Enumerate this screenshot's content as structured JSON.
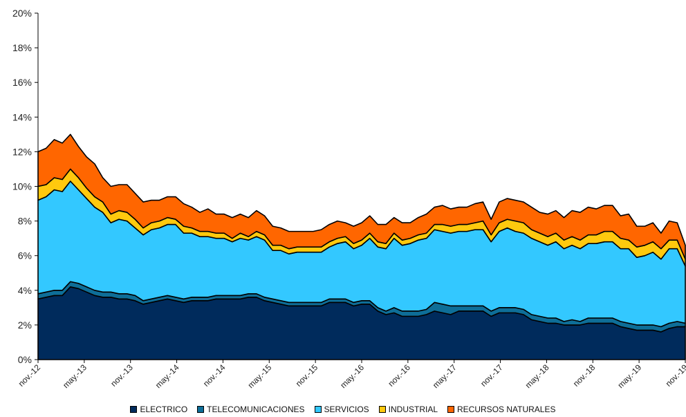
{
  "chart_data": {
    "type": "area",
    "stacked": true,
    "title": "",
    "xlabel": "",
    "ylabel": "",
    "ylim": [
      0,
      20
    ],
    "y_ticks": [
      "0%",
      "2%",
      "4%",
      "6%",
      "8%",
      "10%",
      "12%",
      "14%",
      "16%",
      "18%",
      "20%"
    ],
    "x_ticks": [
      "nov.-12",
      "may.-13",
      "nov.-13",
      "may.-14",
      "nov.-14",
      "may.-15",
      "nov.-15",
      "may.-16",
      "nov.-16",
      "may.-17",
      "nov.-17",
      "may.-18",
      "nov.-18",
      "may.-19",
      "nov.-19"
    ],
    "grid": false,
    "legend_position": "bottom",
    "series": [
      {
        "name": "ELECTRICO",
        "color": "#002B5C",
        "values": [
          3.5,
          3.6,
          3.7,
          3.7,
          4.2,
          4.1,
          3.9,
          3.7,
          3.6,
          3.6,
          3.5,
          3.5,
          3.4,
          3.2,
          3.3,
          3.4,
          3.5,
          3.4,
          3.3,
          3.4,
          3.4,
          3.4,
          3.5,
          3.5,
          3.5,
          3.5,
          3.6,
          3.6,
          3.4,
          3.3,
          3.2,
          3.1,
          3.1,
          3.1,
          3.1,
          3.1,
          3.3,
          3.3,
          3.3,
          3.1,
          3.2,
          3.2,
          2.8,
          2.6,
          2.7,
          2.5,
          2.5,
          2.5,
          2.6,
          2.8,
          2.7,
          2.6,
          2.8,
          2.8,
          2.8,
          2.8,
          2.5,
          2.7,
          2.7,
          2.7,
          2.6,
          2.3,
          2.2,
          2.1,
          2.1,
          2.0,
          2.0,
          2.0,
          2.1,
          2.1,
          2.1,
          2.1,
          1.9,
          1.8,
          1.7,
          1.7,
          1.7,
          1.6,
          1.8,
          1.9,
          1.9
        ]
      },
      {
        "name": "TELECOMUNICACIONES",
        "color": "#0E6E98",
        "values": [
          0.3,
          0.3,
          0.3,
          0.3,
          0.3,
          0.3,
          0.3,
          0.3,
          0.3,
          0.3,
          0.3,
          0.3,
          0.3,
          0.2,
          0.2,
          0.2,
          0.2,
          0.2,
          0.2,
          0.2,
          0.2,
          0.2,
          0.2,
          0.2,
          0.2,
          0.2,
          0.2,
          0.2,
          0.2,
          0.2,
          0.2,
          0.2,
          0.2,
          0.2,
          0.2,
          0.2,
          0.2,
          0.2,
          0.2,
          0.2,
          0.2,
          0.2,
          0.2,
          0.2,
          0.3,
          0.3,
          0.3,
          0.3,
          0.3,
          0.5,
          0.5,
          0.5,
          0.3,
          0.3,
          0.3,
          0.3,
          0.3,
          0.3,
          0.3,
          0.3,
          0.3,
          0.3,
          0.3,
          0.3,
          0.3,
          0.2,
          0.3,
          0.2,
          0.3,
          0.3,
          0.3,
          0.3,
          0.3,
          0.3,
          0.3,
          0.3,
          0.3,
          0.3,
          0.3,
          0.3,
          0.2
        ]
      },
      {
        "name": "SERVICIOS",
        "color": "#33C8FF",
        "values": [
          5.4,
          5.5,
          5.8,
          5.7,
          5.8,
          5.4,
          5.1,
          4.8,
          4.6,
          4.0,
          4.3,
          4.2,
          3.9,
          3.8,
          4.0,
          4.0,
          4.1,
          4.2,
          3.8,
          3.7,
          3.5,
          3.5,
          3.3,
          3.3,
          3.1,
          3.3,
          3.1,
          3.3,
          3.3,
          2.8,
          2.9,
          2.8,
          2.9,
          2.9,
          2.9,
          2.9,
          3.0,
          3.2,
          3.3,
          3.1,
          3.2,
          3.6,
          3.5,
          3.6,
          4.0,
          3.8,
          3.9,
          4.1,
          4.1,
          4.2,
          4.2,
          4.2,
          4.3,
          4.3,
          4.4,
          4.4,
          4.0,
          4.4,
          4.6,
          4.4,
          4.4,
          4.4,
          4.3,
          4.2,
          4.4,
          4.2,
          4.3,
          4.2,
          4.3,
          4.3,
          4.4,
          4.4,
          4.2,
          4.3,
          3.9,
          4.0,
          4.2,
          3.9,
          4.3,
          4.2,
          3.3
        ]
      },
      {
        "name": "INDUSTRIAL",
        "color": "#FFC90E",
        "values": [
          0.8,
          0.7,
          0.7,
          0.7,
          0.7,
          0.7,
          0.6,
          0.6,
          0.6,
          0.5,
          0.5,
          0.5,
          0.5,
          0.4,
          0.4,
          0.4,
          0.4,
          0.3,
          0.4,
          0.3,
          0.3,
          0.3,
          0.3,
          0.3,
          0.2,
          0.3,
          0.2,
          0.3,
          0.3,
          0.3,
          0.3,
          0.3,
          0.3,
          0.3,
          0.3,
          0.3,
          0.3,
          0.3,
          0.3,
          0.3,
          0.3,
          0.3,
          0.3,
          0.3,
          0.3,
          0.3,
          0.3,
          0.3,
          0.3,
          0.3,
          0.4,
          0.4,
          0.4,
          0.4,
          0.4,
          0.5,
          0.4,
          0.5,
          0.5,
          0.6,
          0.6,
          0.5,
          0.5,
          0.5,
          0.5,
          0.5,
          0.5,
          0.5,
          0.5,
          0.5,
          0.6,
          0.6,
          0.6,
          0.5,
          0.6,
          0.6,
          0.6,
          0.6,
          0.5,
          0.5,
          0.4
        ]
      },
      {
        "name": "RECURSOS NATURALES",
        "color": "#FF6600",
        "values": [
          2.0,
          2.1,
          2.2,
          2.1,
          2.0,
          1.8,
          1.8,
          1.9,
          1.4,
          1.6,
          1.5,
          1.6,
          1.5,
          1.5,
          1.3,
          1.2,
          1.2,
          1.3,
          1.3,
          1.2,
          1.1,
          1.3,
          1.1,
          1.1,
          1.2,
          1.1,
          1.1,
          1.2,
          1.1,
          1.1,
          1.0,
          1.0,
          0.9,
          0.9,
          0.9,
          1.0,
          1.0,
          1.0,
          0.8,
          1.0,
          1.0,
          1.0,
          1.0,
          1.1,
          0.9,
          1.0,
          0.9,
          1.0,
          1.1,
          1.0,
          1.1,
          1.0,
          1.0,
          1.0,
          1.1,
          1.1,
          0.9,
          1.2,
          1.2,
          1.2,
          1.2,
          1.3,
          1.2,
          1.3,
          1.3,
          1.3,
          1.5,
          1.6,
          1.6,
          1.5,
          1.5,
          1.5,
          1.3,
          1.5,
          1.2,
          1.1,
          1.1,
          0.9,
          1.1,
          1.0,
          0.8
        ]
      }
    ]
  }
}
